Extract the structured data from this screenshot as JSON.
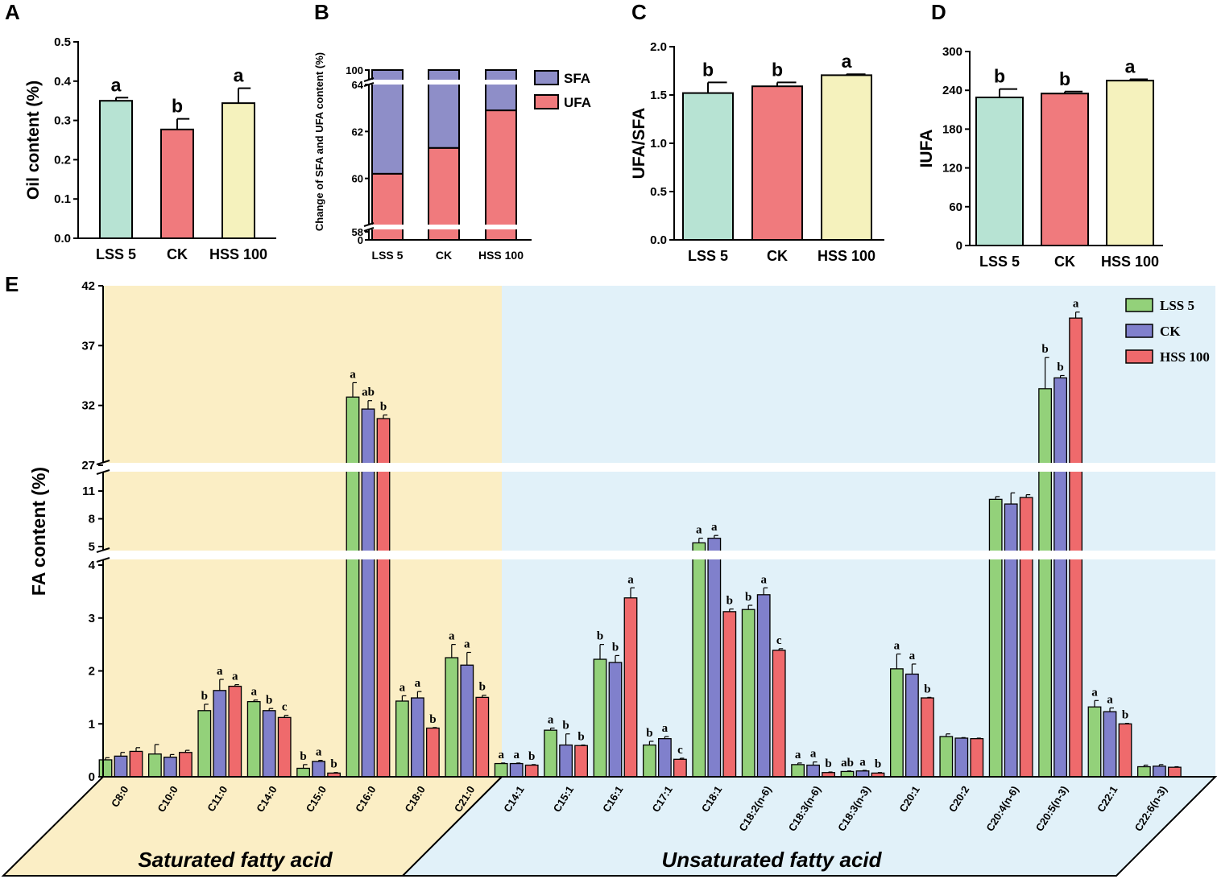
{
  "colors": {
    "lss": "#b7e3d3",
    "ck": "#f07a7d",
    "hss": "#f5f2bd",
    "sfa": "#8e8ec8",
    "ufa": "#f07a7d",
    "e_lss": "#93d17a",
    "e_ck": "#8080cc",
    "e_hss": "#ef6a6c",
    "sat_bg": "#fbeec5",
    "unsat_bg": "#e1f1f9"
  },
  "chart_data": [
    {
      "panel": "A",
      "type": "bar",
      "ylabel": "Oil content (%)",
      "xlabel": "",
      "categories": [
        "LSS 5",
        "CK",
        "HSS 100"
      ],
      "values": [
        0.35,
        0.277,
        0.344
      ],
      "errors": [
        0.008,
        0.027,
        0.038
      ],
      "letters": [
        "a",
        "b",
        "a"
      ],
      "ylim": [
        0,
        0.5
      ],
      "yticks": [
        "0.0",
        "0.1",
        "0.2",
        "0.3",
        "0.4",
        "0.5"
      ]
    },
    {
      "panel": "B",
      "type": "bar",
      "stacked": true,
      "ylabel": "Change of SFA and UFA content (%)",
      "categories": [
        "LSS 5",
        "CK",
        "HSS 100"
      ],
      "series": [
        {
          "name": "UFA",
          "values": [
            60.2,
            61.3,
            62.9
          ]
        },
        {
          "name": "SFA",
          "values": [
            39.8,
            38.7,
            37.1
          ]
        }
      ],
      "legend": [
        "SFA",
        "UFA"
      ],
      "yticks_low": [
        "0"
      ],
      "yticks_mid": [
        "58",
        "60",
        "62",
        "64"
      ],
      "yticks_top": [
        "100"
      ],
      "axis_break": [
        [
          0,
          58
        ],
        [
          64,
          100
        ]
      ]
    },
    {
      "panel": "C",
      "type": "bar",
      "ylabel": "UFA/SFA",
      "categories": [
        "LSS 5",
        "CK",
        "HSS 100"
      ],
      "values": [
        1.52,
        1.59,
        1.705
      ],
      "errors": [
        0.11,
        0.04,
        0.01
      ],
      "letters": [
        "b",
        "b",
        "a"
      ],
      "ylim": [
        0,
        2.0
      ],
      "yticks": [
        "0.0",
        "0.5",
        "1.0",
        "1.5",
        "2.0"
      ]
    },
    {
      "panel": "D",
      "type": "bar",
      "ylabel": "IUFA",
      "categories": [
        "LSS 5",
        "CK",
        "HSS 100"
      ],
      "values": [
        229,
        235,
        255
      ],
      "errors": [
        13,
        3,
        2
      ],
      "letters": [
        "b",
        "b",
        "a"
      ],
      "ylim": [
        0,
        300
      ],
      "yticks": [
        "0",
        "60",
        "120",
        "180",
        "240",
        "300"
      ]
    },
    {
      "panel": "E",
      "type": "bar",
      "ylabel": "FA content (%)",
      "legend": [
        "LSS 5",
        "CK",
        "HSS 100"
      ],
      "yticks_low": [
        "0",
        "1",
        "2",
        "3",
        "4"
      ],
      "yticks_mid": [
        "5",
        "8",
        "11"
      ],
      "yticks_high": [
        "27",
        "32",
        "37",
        "42"
      ],
      "axis_break": [
        [
          4,
          5
        ],
        [
          11,
          27
        ]
      ],
      "group_labels": [
        "Saturated fatty acid",
        "Unsaturated fatty acid"
      ],
      "categories": [
        "C8:0",
        "C10:0",
        "C11:0",
        "C14:0",
        "C15:0",
        "C16:0",
        "C18:0",
        "C21:0",
        "C14:1",
        "C15:1",
        "C16:1",
        "C17:1",
        "C18:1",
        "C18:2(n-6)",
        "C18:3(n-6)",
        "C18:3(n-3)",
        "C20:1",
        "C20:2",
        "C20:4(n-6)",
        "C20:5(n-3)",
        "C22:1",
        "C22:6(n-3)"
      ],
      "saturated_count": 8,
      "series": [
        {
          "name": "LSS 5",
          "values": [
            0.32,
            0.43,
            1.25,
            1.42,
            0.16,
            32.7,
            1.43,
            2.25,
            0.25,
            0.88,
            2.22,
            0.6,
            5.4,
            3.16,
            0.23,
            0.1,
            2.04,
            0.76,
            10.1,
            33.4,
            1.32,
            0.19
          ],
          "errors": [
            0.04,
            0.18,
            0.12,
            0.03,
            0.07,
            1.2,
            0.1,
            0.25,
            0.01,
            0.04,
            0.28,
            0.07,
            0.5,
            0.08,
            0.03,
            0.01,
            0.28,
            0.05,
            0.3,
            2.6,
            0.12,
            0.03
          ],
          "letters": [
            "",
            "",
            "b",
            "a",
            "b",
            "a",
            "a",
            "a",
            "a",
            "a",
            "b",
            "b",
            "a",
            "b",
            "a",
            "ab",
            "a",
            "",
            "",
            "b",
            "a",
            ""
          ]
        },
        {
          "name": "CK",
          "values": [
            0.39,
            0.37,
            1.63,
            1.25,
            0.29,
            31.7,
            1.49,
            2.11,
            0.25,
            0.6,
            2.16,
            0.72,
            5.9,
            3.44,
            0.22,
            0.11,
            1.94,
            0.73,
            9.6,
            34.3,
            1.23,
            0.2
          ],
          "errors": [
            0.07,
            0.05,
            0.21,
            0.04,
            0.02,
            0.7,
            0.12,
            0.24,
            0.01,
            0.21,
            0.13,
            0.04,
            0.3,
            0.13,
            0.06,
            0.01,
            0.19,
            0.01,
            1.2,
            0.2,
            0.07,
            0.03
          ],
          "letters": [
            "",
            "",
            "a",
            "b",
            "a",
            "ab",
            "a",
            "a",
            "a",
            "b",
            "b",
            "a",
            "a",
            "a",
            "a",
            "a",
            "a",
            "",
            "",
            "b",
            "a",
            ""
          ]
        },
        {
          "name": "HSS 100",
          "values": [
            0.48,
            0.46,
            1.71,
            1.12,
            0.07,
            30.9,
            0.92,
            1.5,
            0.22,
            0.59,
            3.38,
            0.33,
            3.12,
            2.39,
            0.08,
            0.07,
            1.49,
            0.72,
            10.3,
            39.3,
            1.0,
            0.18
          ],
          "errors": [
            0.07,
            0.04,
            0.03,
            0.04,
            0.01,
            0.3,
            0.01,
            0.04,
            0.01,
            0.01,
            0.19,
            0.02,
            0.05,
            0.03,
            0.01,
            0.01,
            0.01,
            0.01,
            0.3,
            0.5,
            0.01,
            0.01
          ],
          "letters": [
            "",
            "",
            "a",
            "c",
            "b",
            "b",
            "b",
            "b",
            "b",
            "b",
            "a",
            "c",
            "b",
            "c",
            "b",
            "b",
            "b",
            "",
            "",
            "a",
            "b",
            ""
          ]
        }
      ]
    }
  ]
}
